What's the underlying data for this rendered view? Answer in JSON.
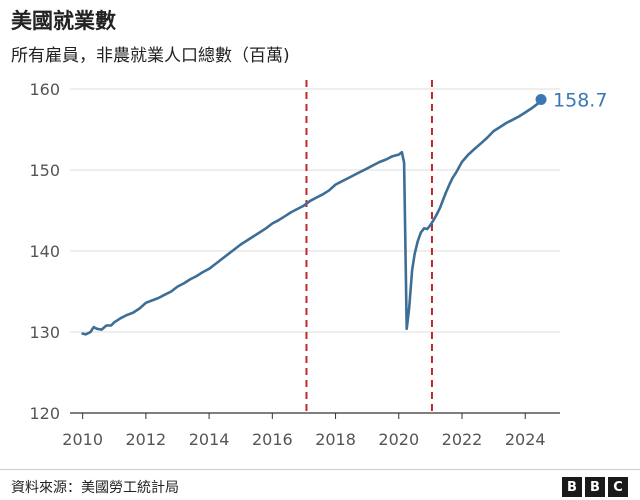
{
  "title": "美國就業數",
  "subtitle": "所有雇員，非農就業人口總數（百萬)",
  "source": "資料來源：美國勞工統計局",
  "logo": [
    "B",
    "B",
    "C"
  ],
  "colors": {
    "line": "#3d6e96",
    "marker": "#3a78b5",
    "reference_lines": "#c0272d",
    "axis": "#333333"
  },
  "chart_data": {
    "type": "line",
    "title": "美國就業數",
    "subtitle": "所有雇員，非農就業人口總數（百萬)",
    "xlabel": "",
    "ylabel": "",
    "xlim": [
      2009.6,
      2025.1
    ],
    "ylim": [
      120,
      160
    ],
    "x_ticks": [
      2010,
      2012,
      2014,
      2016,
      2018,
      2020,
      2022,
      2024
    ],
    "x_tick_labels": [
      "2010",
      "2012",
      "2014",
      "2016",
      "2018",
      "2020",
      "2022",
      "2024"
    ],
    "y_ticks": [
      120,
      130,
      140,
      150,
      160
    ],
    "y_tick_labels": [
      "120",
      "130",
      "140",
      "150",
      "160"
    ],
    "grid": "horizontal",
    "reference_lines": [
      {
        "x": 2017.08,
        "style": "dashed"
      },
      {
        "x": 2021.05,
        "style": "dashed"
      }
    ],
    "end_label": "158.7",
    "series": [
      {
        "x": [
          2010.0,
          2010.1,
          2010.25,
          2010.35,
          2010.45,
          2010.6,
          2010.75,
          2010.9,
          2011.0,
          2011.2,
          2011.4,
          2011.6,
          2011.8,
          2012.0,
          2012.2,
          2012.4,
          2012.6,
          2012.8,
          2013.0,
          2013.2,
          2013.4,
          2013.6,
          2013.8,
          2014.0,
          2014.2,
          2014.4,
          2014.6,
          2014.8,
          2015.0,
          2015.2,
          2015.4,
          2015.6,
          2015.8,
          2016.0,
          2016.2,
          2016.4,
          2016.6,
          2016.8,
          2017.0,
          2017.2,
          2017.4,
          2017.6,
          2017.8,
          2018.0,
          2018.2,
          2018.4,
          2018.6,
          2018.8,
          2019.0,
          2019.2,
          2019.4,
          2019.6,
          2019.8,
          2020.0,
          2020.1,
          2020.17,
          2020.25,
          2020.33,
          2020.42,
          2020.5,
          2020.6,
          2020.7,
          2020.8,
          2020.9,
          2021.0,
          2021.1,
          2021.2,
          2021.3,
          2021.4,
          2021.5,
          2021.6,
          2021.7,
          2021.8,
          2021.9,
          2022.0,
          2022.2,
          2022.4,
          2022.6,
          2022.8,
          2023.0,
          2023.2,
          2023.4,
          2023.6,
          2023.8,
          2024.0,
          2024.2,
          2024.4,
          2024.5
        ],
        "y": [
          129.8,
          129.7,
          130.0,
          130.6,
          130.4,
          130.3,
          130.8,
          130.8,
          131.2,
          131.7,
          132.1,
          132.4,
          132.9,
          133.6,
          133.9,
          134.2,
          134.6,
          135.0,
          135.6,
          136.0,
          136.5,
          136.9,
          137.4,
          137.8,
          138.4,
          139.0,
          139.6,
          140.2,
          140.8,
          141.3,
          141.8,
          142.3,
          142.8,
          143.4,
          143.8,
          144.3,
          144.8,
          145.2,
          145.6,
          146.2,
          146.6,
          147.0,
          147.5,
          148.2,
          148.6,
          149.0,
          149.4,
          149.8,
          150.2,
          150.6,
          151.0,
          151.3,
          151.7,
          151.9,
          152.2,
          150.9,
          130.4,
          133.0,
          137.6,
          139.6,
          141.2,
          142.3,
          142.8,
          142.7,
          143.2,
          143.8,
          144.5,
          145.3,
          146.3,
          147.3,
          148.2,
          149.0,
          149.6,
          150.3,
          151.0,
          151.9,
          152.6,
          153.3,
          154.0,
          154.8,
          155.3,
          155.8,
          156.2,
          156.6,
          157.1,
          157.6,
          158.2,
          158.7
        ]
      }
    ]
  }
}
